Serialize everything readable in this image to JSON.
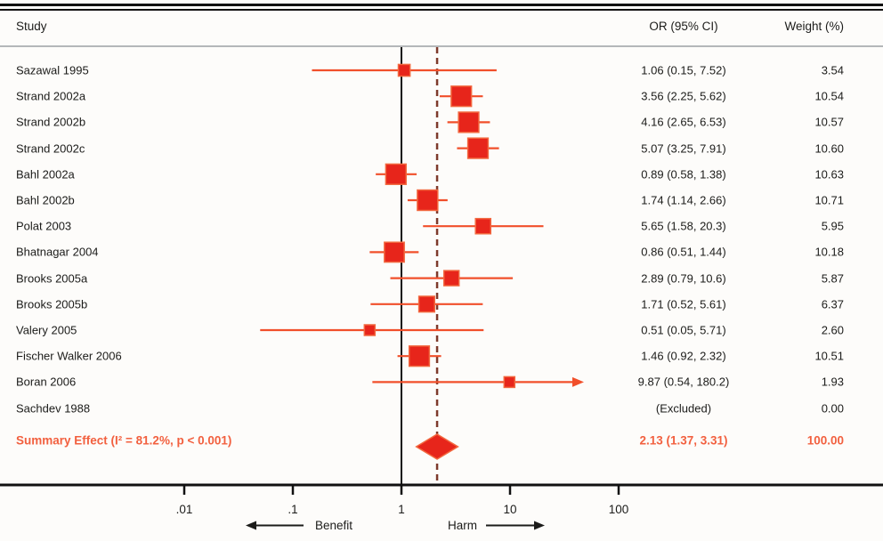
{
  "header": {
    "study": "Study",
    "or_ci": "OR (95% CI)",
    "weight": "Weight (%)"
  },
  "colors": {
    "marker_fill": "#e7251b",
    "marker_edge": "#f2683f",
    "ci_line": "#f14f2a",
    "null_line": "#111111",
    "dashed_line": "#7e3a2c",
    "summary_text": "#f2603f",
    "text": "#1c1c1a",
    "separator": "#b4b7b9"
  },
  "chart_data": {
    "type": "forest",
    "x_axis": {
      "scale": "log",
      "tick_labels": [
        ".01",
        ".1",
        "1",
        "10",
        "100"
      ],
      "tick_values": [
        0.01,
        0.1,
        1,
        10,
        100
      ],
      "benefit_label": "Benefit",
      "harm_label": "Harm",
      "null_value": 1
    },
    "studies": [
      {
        "label": "Sazawal 1995",
        "or": 1.06,
        "lcl": 0.15,
        "ucl": 7.52,
        "or_text": "1.06 (0.15, 7.52)",
        "weight": 3.54,
        "weight_text": "3.54"
      },
      {
        "label": "Strand 2002a",
        "or": 3.56,
        "lcl": 2.25,
        "ucl": 5.62,
        "or_text": "3.56 (2.25, 5.62)",
        "weight": 10.54,
        "weight_text": "10.54"
      },
      {
        "label": "Strand 2002b",
        "or": 4.16,
        "lcl": 2.65,
        "ucl": 6.53,
        "or_text": "4.16 (2.65, 6.53)",
        "weight": 10.57,
        "weight_text": "10.57"
      },
      {
        "label": "Strand 2002c",
        "or": 5.07,
        "lcl": 3.25,
        "ucl": 7.91,
        "or_text": "5.07 (3.25, 7.91)",
        "weight": 10.6,
        "weight_text": "10.60"
      },
      {
        "label": "Bahl 2002a",
        "or": 0.89,
        "lcl": 0.58,
        "ucl": 1.38,
        "or_text": "0.89 (0.58, 1.38)",
        "weight": 10.63,
        "weight_text": "10.63"
      },
      {
        "label": "Bahl 2002b",
        "or": 1.74,
        "lcl": 1.14,
        "ucl": 2.66,
        "or_text": "1.74 (1.14, 2.66)",
        "weight": 10.71,
        "weight_text": "10.71"
      },
      {
        "label": "Polat 2003",
        "or": 5.65,
        "lcl": 1.58,
        "ucl": 20.3,
        "or_text": "5.65 (1.58, 20.3)",
        "weight": 5.95,
        "weight_text": "5.95"
      },
      {
        "label": "Bhatnagar 2004",
        "or": 0.86,
        "lcl": 0.51,
        "ucl": 1.44,
        "or_text": "0.86 (0.51, 1.44)",
        "weight": 10.18,
        "weight_text": "10.18"
      },
      {
        "label": "Brooks 2005a",
        "or": 2.89,
        "lcl": 0.79,
        "ucl": 10.6,
        "or_text": "2.89 (0.79, 10.6)",
        "weight": 5.87,
        "weight_text": "5.87"
      },
      {
        "label": "Brooks 2005b",
        "or": 1.71,
        "lcl": 0.52,
        "ucl": 5.61,
        "or_text": "1.71 (0.52, 5.61)",
        "weight": 6.37,
        "weight_text": "6.37"
      },
      {
        "label": "Valery 2005",
        "or": 0.51,
        "lcl": 0.05,
        "ucl": 5.71,
        "or_text": "0.51 (0.05, 5.71)",
        "weight": 2.6,
        "weight_text": "2.60"
      },
      {
        "label": "Fischer Walker 2006",
        "or": 1.46,
        "lcl": 0.92,
        "ucl": 2.32,
        "or_text": "1.46 (0.92, 2.32)",
        "weight": 10.51,
        "weight_text": "10.51"
      },
      {
        "label": "Boran 2006",
        "or": 9.87,
        "lcl": 0.54,
        "ucl": 180.2,
        "or_text": "9.87 (0.54, 180.2)",
        "weight": 1.93,
        "weight_text": "1.93",
        "arrow": true
      },
      {
        "label": "Sachdev 1988",
        "or": null,
        "lcl": null,
        "ucl": null,
        "or_text": "(Excluded)",
        "weight": 0,
        "weight_text": "0.00",
        "excluded": true
      }
    ],
    "summary": {
      "label": "Summary Effect  (I² = 81.2%, p < 0.001)",
      "or": 2.13,
      "lcl": 1.37,
      "ucl": 3.31,
      "or_text": "2.13 (1.37, 3.31)",
      "weight_text": "100.00",
      "heterogeneity_i2": "81.2%",
      "p_value": "< 0.001"
    }
  }
}
